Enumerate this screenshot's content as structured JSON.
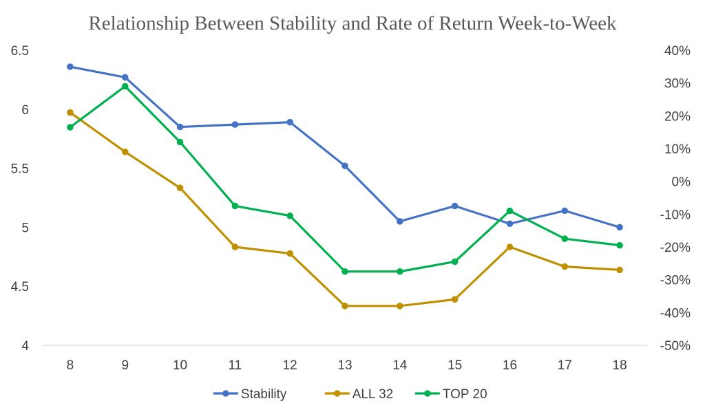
{
  "chart_data": {
    "type": "line",
    "title": "Relationship Between Stability and Rate of Return Week-to-Week",
    "xlabel": "",
    "ylabel": "",
    "categories": [
      "8",
      "9",
      "10",
      "11",
      "12",
      "13",
      "14",
      "15",
      "16",
      "17",
      "18"
    ],
    "y_left": {
      "min": 4,
      "max": 6.5,
      "ticks": [
        4,
        4.5,
        5,
        5.5,
        6,
        6.5
      ],
      "tick_labels": [
        "4",
        "4.5",
        "5",
        "5.5",
        "6",
        "6.5"
      ]
    },
    "y_right": {
      "min": -0.5,
      "max": 0.4,
      "ticks": [
        -0.5,
        -0.4,
        -0.3,
        -0.2,
        -0.1,
        0,
        0.1,
        0.2,
        0.3,
        0.4
      ],
      "tick_labels": [
        "-50%",
        "-40%",
        "-30%",
        "-20%",
        "-10%",
        "0%",
        "10%",
        "20%",
        "30%",
        "40%"
      ]
    },
    "series": [
      {
        "name": "Stability",
        "axis": "left",
        "color": "#4472C4",
        "values": [
          6.36,
          6.27,
          5.85,
          5.87,
          5.89,
          5.52,
          5.05,
          5.18,
          5.03,
          5.14,
          5.0
        ]
      },
      {
        "name": "ALL 32",
        "axis": "right",
        "color": "#BF9000",
        "values": [
          0.21,
          0.09,
          -0.02,
          -0.2,
          -0.22,
          -0.38,
          -0.38,
          -0.36,
          -0.2,
          -0.26,
          -0.27
        ]
      },
      {
        "name": "TOP 20",
        "axis": "right",
        "color": "#00B050",
        "values": [
          0.165,
          0.29,
          0.12,
          -0.075,
          -0.105,
          -0.275,
          -0.275,
          -0.245,
          -0.09,
          -0.175,
          -0.195
        ]
      }
    ],
    "grid": false,
    "legend_position": "bottom"
  }
}
